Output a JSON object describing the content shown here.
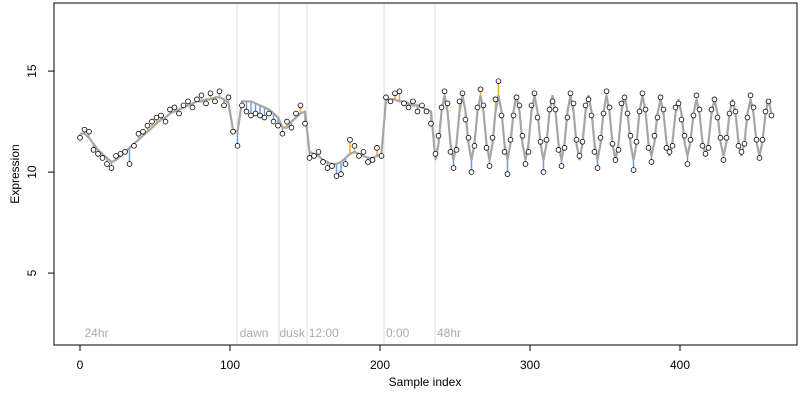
{
  "chart_data": {
    "type": "residual-line",
    "xlabel": "Sample index",
    "ylabel": "Expression",
    "xlim": [
      -17.33,
      478
    ],
    "ylim": [
      1.44,
      18.37
    ],
    "xticks": [
      0,
      100,
      200,
      300,
      400
    ],
    "yticks": [
      5,
      10,
      15
    ],
    "x": [
      0,
      3,
      6,
      9,
      12,
      15,
      18,
      21,
      24,
      27,
      30,
      33,
      36,
      39,
      42,
      45,
      48,
      51,
      54,
      57,
      60,
      63,
      66,
      69,
      72,
      75,
      78,
      81,
      84,
      87,
      90,
      93,
      96,
      99,
      102,
      105,
      108,
      111,
      114,
      117,
      120,
      123,
      126,
      129,
      132,
      135,
      138,
      141,
      144,
      147,
      150,
      153,
      156,
      159,
      162,
      165,
      168,
      171,
      174,
      177,
      180,
      183,
      186,
      189,
      192,
      195,
      198,
      201,
      204,
      207,
      210,
      213,
      216,
      219,
      222,
      225,
      228,
      231,
      234,
      237,
      239,
      241,
      243,
      245,
      247,
      249,
      251,
      253,
      255,
      257,
      259,
      261,
      263,
      265,
      267,
      269,
      271,
      273,
      275,
      277,
      279,
      281,
      283,
      285,
      287,
      289,
      291,
      293,
      295,
      297,
      299,
      301,
      303,
      305,
      307,
      309,
      311,
      313,
      315,
      317,
      319,
      321,
      323,
      325,
      327,
      329,
      331,
      333,
      335,
      337,
      339,
      341,
      343,
      345,
      347,
      349,
      351,
      353,
      355,
      357,
      359,
      361,
      363,
      365,
      367,
      369,
      371,
      373,
      375,
      377,
      379,
      381,
      383,
      385,
      387,
      389,
      391,
      393,
      395,
      397,
      399,
      401,
      403,
      405,
      407,
      409,
      411,
      413,
      415,
      417,
      419,
      421,
      423,
      425,
      427,
      429,
      431,
      433,
      435,
      437,
      439,
      441,
      443,
      445,
      447,
      449,
      451,
      453,
      455,
      457,
      459,
      461
    ],
    "points": {
      "fill": "#ffffff",
      "stroke": "#000000",
      "values": [
        11.7,
        12.1,
        12.0,
        11.1,
        10.9,
        10.7,
        10.4,
        10.2,
        10.8,
        10.9,
        11.0,
        10.4,
        11.3,
        11.9,
        12.0,
        12.3,
        12.5,
        12.7,
        12.8,
        12.5,
        13.1,
        13.2,
        12.9,
        13.3,
        13.5,
        13.2,
        13.6,
        13.8,
        13.4,
        13.9,
        13.5,
        14.0,
        13.3,
        13.7,
        12.0,
        11.3,
        13.3,
        13.0,
        12.8,
        12.9,
        12.8,
        12.7,
        12.9,
        12.5,
        12.3,
        11.9,
        12.5,
        12.2,
        12.9,
        13.3,
        12.4,
        10.7,
        10.8,
        11.0,
        10.5,
        10.2,
        10.3,
        9.8,
        9.9,
        10.4,
        11.6,
        11.3,
        10.8,
        11.0,
        10.5,
        10.6,
        11.2,
        10.8,
        13.7,
        13.5,
        13.9,
        14.0,
        13.4,
        13.2,
        13.5,
        13.0,
        13.3,
        13.0,
        12.4,
        10.9,
        11.8,
        13.2,
        14.0,
        13.4,
        11.0,
        10.2,
        11.1,
        13.5,
        13.9,
        12.6,
        11.7,
        10.0,
        11.3,
        13.2,
        14.1,
        13.3,
        11.2,
        10.3,
        11.7,
        13.6,
        14.5,
        12.8,
        11.0,
        9.9,
        11.6,
        12.8,
        13.7,
        13.3,
        11.8,
        10.4,
        11.0,
        13.3,
        13.9,
        12.7,
        11.5,
        10.0,
        11.6,
        13.1,
        13.5,
        13.1,
        11.1,
        10.3,
        11.2,
        12.7,
        13.9,
        13.4,
        11.6,
        10.8,
        11.5,
        13.3,
        13.6,
        12.8,
        11.0,
        10.2,
        11.7,
        12.9,
        14.0,
        13.2,
        11.4,
        10.6,
        11.1,
        13.4,
        13.7,
        12.9,
        11.8,
        10.1,
        11.5,
        13.0,
        13.9,
        13.1,
        11.2,
        10.5,
        11.8,
        12.7,
        13.7,
        13.1,
        11.2,
        11.0,
        11.3,
        13.2,
        13.4,
        12.6,
        11.8,
        10.4,
        11.6,
        12.8,
        13.8,
        13.1,
        11.3,
        10.9,
        11.2,
        13.1,
        13.6,
        12.7,
        11.7,
        10.6,
        11.7,
        12.9,
        13.4,
        13.0,
        11.3,
        11.0,
        11.4,
        12.7,
        13.8,
        13.2,
        11.6,
        10.7,
        11.6,
        13.0,
        13.5,
        12.8
      ]
    },
    "fit": {
      "color": "#a6a6a6",
      "values": [
        11.9,
        11.9,
        11.7,
        11.4,
        11.1,
        10.9,
        10.7,
        10.5,
        10.6,
        10.8,
        11.0,
        11.2,
        11.4,
        11.6,
        11.8,
        12.0,
        12.2,
        12.4,
        12.6,
        12.7,
        12.9,
        13.0,
        13.1,
        13.2,
        13.3,
        13.4,
        13.5,
        13.5,
        13.6,
        13.6,
        13.7,
        13.7,
        13.6,
        13.4,
        12.1,
        12.0,
        13.5,
        13.5,
        13.5,
        13.4,
        13.3,
        13.2,
        13.1,
        12.9,
        12.7,
        12.2,
        12.2,
        12.5,
        12.7,
        12.9,
        13.0,
        11.0,
        10.9,
        10.8,
        10.6,
        10.5,
        10.4,
        10.4,
        10.5,
        10.7,
        10.9,
        11.0,
        10.9,
        10.8,
        10.7,
        10.7,
        10.8,
        10.9,
        13.6,
        13.6,
        13.6,
        13.5,
        13.5,
        13.4,
        13.3,
        13.3,
        13.2,
        13.1,
        13.0,
        10.6,
        11.4,
        13.0,
        13.8,
        13.0,
        11.4,
        10.6,
        11.4,
        13.0,
        13.8,
        13.0,
        11.4,
        10.6,
        11.4,
        13.0,
        13.8,
        13.0,
        11.4,
        10.6,
        11.4,
        13.0,
        13.8,
        13.0,
        11.4,
        10.6,
        11.4,
        13.0,
        13.8,
        13.0,
        11.4,
        10.6,
        11.4,
        13.0,
        13.8,
        13.0,
        11.4,
        10.6,
        11.4,
        13.0,
        13.8,
        13.0,
        11.4,
        10.6,
        11.4,
        13.0,
        13.8,
        13.0,
        11.4,
        10.6,
        11.4,
        13.0,
        13.8,
        13.0,
        11.4,
        10.6,
        11.4,
        13.0,
        13.8,
        13.0,
        11.4,
        10.6,
        11.4,
        13.0,
        13.8,
        13.0,
        11.4,
        10.6,
        11.4,
        13.0,
        13.8,
        13.0,
        11.4,
        10.8,
        11.5,
        12.9,
        13.6,
        12.9,
        11.5,
        10.8,
        11.5,
        12.9,
        13.6,
        12.9,
        11.5,
        10.8,
        11.5,
        12.9,
        13.6,
        12.9,
        11.5,
        10.8,
        11.5,
        12.9,
        13.6,
        12.9,
        11.5,
        10.8,
        11.5,
        12.9,
        13.6,
        12.9,
        11.5,
        10.8,
        11.5,
        12.9,
        13.6,
        12.9,
        11.5,
        10.8,
        11.5,
        12.9,
        13.6,
        12.9
      ]
    },
    "residual_colors": {
      "above": "#f5a623",
      "below": "#6f9be0"
    },
    "vlines": [
      104.7,
      132.7,
      151.3,
      202.7,
      236.7
    ],
    "annotations": [
      {
        "x": 3,
        "y": 2,
        "label": "24hr"
      },
      {
        "x": 106.5,
        "y": 2,
        "label": "dawn"
      },
      {
        "x": 133,
        "y": 2,
        "label": "dusk"
      },
      {
        "x": 152.5,
        "y": 2,
        "label": "12:00"
      },
      {
        "x": 204,
        "y": 2,
        "label": "0:00"
      },
      {
        "x": 238,
        "y": 2,
        "label": "48hr"
      }
    ]
  }
}
